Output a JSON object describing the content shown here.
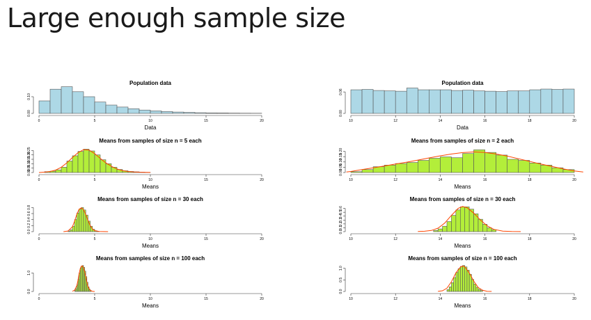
{
  "title": "Large enough sample size",
  "colors": {
    "population_fill": "#add8e6",
    "sample_fill": "#b3ee3a",
    "bar_stroke": "#555555",
    "density_line": "#ff4500",
    "axis": "#333333"
  },
  "chart_data": [
    {
      "type": "bar",
      "title": "Population data",
      "xlabel": "Data",
      "xlim": [
        0,
        20
      ],
      "ylim": [
        0,
        0.15
      ],
      "xticks": [
        "0",
        "5",
        "10",
        "15",
        "20"
      ],
      "yticks": [
        "0.00",
        "0.10"
      ],
      "bin_edges": [
        0,
        1,
        2,
        3,
        4,
        5,
        6,
        7,
        8,
        9,
        10,
        11,
        12,
        13,
        14,
        15,
        16,
        17,
        18,
        19,
        20
      ],
      "values": [
        0.075,
        0.145,
        0.16,
        0.13,
        0.1,
        0.068,
        0.05,
        0.038,
        0.028,
        0.02,
        0.015,
        0.011,
        0.008,
        0.006,
        0.004,
        0.003,
        0.0025,
        0.0018,
        0.0013,
        0.001
      ],
      "fill": "population",
      "density": null
    },
    {
      "type": "bar",
      "title": "Population data",
      "xlabel": "Data",
      "xlim": [
        10,
        20
      ],
      "ylim": [
        0,
        0.07
      ],
      "xticks": [
        "10",
        "12",
        "14",
        "16",
        "18",
        "20"
      ],
      "yticks": [
        "0.00",
        "0.06"
      ],
      "bin_edges": [
        10,
        10.5,
        11,
        11.5,
        12,
        12.5,
        13,
        13.5,
        14,
        14.5,
        15,
        15.5,
        16,
        16.5,
        17,
        17.5,
        18,
        18.5,
        19,
        19.5,
        20
      ],
      "values": [
        0.066,
        0.067,
        0.064,
        0.063,
        0.062,
        0.071,
        0.066,
        0.066,
        0.066,
        0.064,
        0.065,
        0.063,
        0.062,
        0.061,
        0.063,
        0.063,
        0.066,
        0.068,
        0.067,
        0.068
      ],
      "fill": "population",
      "density": null
    },
    {
      "type": "bar",
      "title": "Means from samples of size n = 5 each",
      "xlabel": "Means",
      "xlim": [
        0,
        20
      ],
      "ylim": [
        0,
        0.3
      ],
      "xticks": [
        "0",
        "5",
        "10",
        "15",
        "20"
      ],
      "yticks": [
        "0.00",
        "0.05",
        "0.10",
        "0.15",
        "0.20",
        "0.25"
      ],
      "bin_edges": [
        0,
        0.5,
        1,
        1.5,
        2,
        2.5,
        3,
        3.5,
        4,
        4.5,
        5,
        5.5,
        6,
        6.5,
        7,
        7.5,
        8,
        8.5,
        9,
        9.5,
        10
      ],
      "values": [
        0.0,
        0.01,
        0.015,
        0.03,
        0.06,
        0.13,
        0.19,
        0.24,
        0.265,
        0.245,
        0.2,
        0.145,
        0.1,
        0.06,
        0.035,
        0.02,
        0.012,
        0.008,
        0.004,
        0.002
      ],
      "fill": "sample",
      "density": {
        "x": [
          0,
          0.5,
          1,
          1.5,
          2,
          2.5,
          3,
          3.5,
          4,
          4.5,
          5,
          5.5,
          6,
          6.5,
          7,
          7.5,
          8,
          8.5,
          9,
          9.5,
          10
        ],
        "y": [
          0,
          0.005,
          0.012,
          0.028,
          0.06,
          0.11,
          0.17,
          0.225,
          0.26,
          0.255,
          0.215,
          0.16,
          0.11,
          0.07,
          0.04,
          0.022,
          0.012,
          0.007,
          0.004,
          0.002,
          0.001
        ]
      }
    },
    {
      "type": "bar",
      "title": "Means from samples of size n = 2 each",
      "xlabel": "Means",
      "xlim": [
        10,
        20
      ],
      "ylim": [
        0,
        0.25
      ],
      "xticks": [
        "10",
        "12",
        "14",
        "16",
        "18",
        "20"
      ],
      "yticks": [
        "0.00",
        "0.05",
        "0.10",
        "0.15",
        "0.20"
      ],
      "bin_edges": [
        10,
        10.5,
        11,
        11.5,
        12,
        12.5,
        13,
        13.5,
        14,
        14.5,
        15,
        15.5,
        16,
        16.5,
        17,
        17.5,
        18,
        18.5,
        19,
        19.5,
        20
      ],
      "values": [
        0.008,
        0.028,
        0.055,
        0.07,
        0.085,
        0.095,
        0.115,
        0.135,
        0.148,
        0.14,
        0.18,
        0.215,
        0.19,
        0.165,
        0.125,
        0.115,
        0.09,
        0.07,
        0.045,
        0.028
      ],
      "fill": "sample",
      "density": {
        "x": [
          9.8,
          10,
          10.5,
          11,
          11.5,
          12,
          12.5,
          13,
          13.5,
          14,
          14.5,
          15,
          15.5,
          16,
          16.5,
          17,
          17.5,
          18,
          18.5,
          19,
          19.5,
          20,
          20.4
        ],
        "y": [
          0.005,
          0.01,
          0.028,
          0.045,
          0.062,
          0.08,
          0.098,
          0.118,
          0.138,
          0.158,
          0.175,
          0.188,
          0.195,
          0.19,
          0.175,
          0.155,
          0.13,
          0.105,
          0.08,
          0.058,
          0.035,
          0.015,
          0.005
        ]
      }
    },
    {
      "type": "bar",
      "title": "Means from samples of size n = 30 each",
      "xlabel": "Means",
      "xlim": [
        0,
        20
      ],
      "ylim": [
        0,
        0.9
      ],
      "xticks": [
        "0",
        "5",
        "10",
        "15",
        "20"
      ],
      "yticks": [
        "0.0",
        "0.2",
        "0.4",
        "0.6",
        "0.8"
      ],
      "bin_edges": [
        2.6,
        2.8,
        3.0,
        3.2,
        3.4,
        3.6,
        3.8,
        4.0,
        4.2,
        4.4,
        4.6,
        4.8,
        5.0,
        5.2,
        5.4
      ],
      "values": [
        0.02,
        0.06,
        0.18,
        0.4,
        0.62,
        0.75,
        0.8,
        0.72,
        0.55,
        0.35,
        0.18,
        0.08,
        0.03,
        0.01
      ],
      "fill": "sample",
      "density": {
        "x": [
          2.2,
          2.6,
          3.0,
          3.2,
          3.4,
          3.6,
          3.8,
          4.0,
          4.2,
          4.4,
          4.6,
          4.8,
          5.0,
          5.4,
          5.8,
          6.2
        ],
        "y": [
          0,
          0.02,
          0.16,
          0.35,
          0.58,
          0.74,
          0.79,
          0.73,
          0.57,
          0.37,
          0.2,
          0.09,
          0.035,
          0.008,
          0.002,
          0
        ]
      }
    },
    {
      "type": "bar",
      "title": "Means from samples of size n = 30 each",
      "xlabel": "Means",
      "xlim": [
        10,
        20
      ],
      "ylim": [
        0,
        0.7
      ],
      "xticks": [
        "10",
        "12",
        "14",
        "16",
        "18",
        "20"
      ],
      "yticks": [
        "0.0",
        "0.1",
        "0.2",
        "0.3",
        "0.4",
        "0.5",
        "0.6"
      ],
      "bin_edges": [
        13.7,
        13.9,
        14.1,
        14.3,
        14.5,
        14.7,
        14.9,
        15.1,
        15.3,
        15.5,
        15.7,
        15.9,
        16.1,
        16.3,
        16.5
      ],
      "values": [
        0.03,
        0.07,
        0.14,
        0.26,
        0.42,
        0.56,
        0.64,
        0.64,
        0.58,
        0.46,
        0.32,
        0.19,
        0.1,
        0.05
      ],
      "fill": "sample",
      "density": {
        "x": [
          13.0,
          13.3,
          13.6,
          13.9,
          14.2,
          14.5,
          14.8,
          15.0,
          15.2,
          15.5,
          15.8,
          16.1,
          16.4,
          16.8,
          17.2,
          17.6
        ],
        "y": [
          0.003,
          0.01,
          0.03,
          0.09,
          0.22,
          0.42,
          0.6,
          0.65,
          0.62,
          0.48,
          0.3,
          0.15,
          0.06,
          0.015,
          0.004,
          0.001
        ]
      }
    },
    {
      "type": "bar",
      "title": "Means from samples of size n = 100 each",
      "xlabel": "Means",
      "xlim": [
        0,
        20
      ],
      "ylim": [
        0,
        1.5
      ],
      "xticks": [
        "0",
        "5",
        "10",
        "15",
        "20"
      ],
      "yticks": [
        "0.0",
        "1.0"
      ],
      "bin_edges": [
        3.2,
        3.3,
        3.4,
        3.5,
        3.6,
        3.7,
        3.8,
        3.9,
        4.0,
        4.1,
        4.2,
        4.3,
        4.4,
        4.5,
        4.6,
        4.7
      ],
      "values": [
        0.05,
        0.15,
        0.35,
        0.65,
        1.0,
        1.25,
        1.38,
        1.4,
        1.3,
        1.1,
        0.8,
        0.5,
        0.25,
        0.12,
        0.05
      ],
      "fill": "sample",
      "density": {
        "x": [
          3.0,
          3.2,
          3.4,
          3.5,
          3.6,
          3.7,
          3.8,
          3.9,
          4.0,
          4.1,
          4.2,
          4.3,
          4.4,
          4.6,
          4.8,
          5.0
        ],
        "y": [
          0.01,
          0.07,
          0.32,
          0.6,
          0.95,
          1.22,
          1.36,
          1.38,
          1.28,
          1.08,
          0.8,
          0.5,
          0.26,
          0.06,
          0.01,
          0
        ]
      }
    },
    {
      "type": "bar",
      "title": "Means from samples of size n = 100 each",
      "xlabel": "Means",
      "xlim": [
        10,
        20
      ],
      "ylim": [
        0,
        1.2
      ],
      "xticks": [
        "10",
        "12",
        "14",
        "16",
        "18",
        "20"
      ],
      "yticks": [
        "0.0",
        "0.5",
        "1.0"
      ],
      "bin_edges": [
        14.3,
        14.4,
        14.5,
        14.6,
        14.7,
        14.8,
        14.9,
        15.0,
        15.1,
        15.2,
        15.3,
        15.4,
        15.5,
        15.6,
        15.7,
        15.8,
        15.9
      ],
      "values": [
        0.08,
        0.2,
        0.38,
        0.6,
        0.82,
        0.98,
        1.08,
        1.12,
        1.06,
        0.92,
        0.74,
        0.52,
        0.32,
        0.18,
        0.09,
        0.04
      ],
      "fill": "sample",
      "density": {
        "x": [
          13.9,
          14.1,
          14.3,
          14.5,
          14.7,
          14.9,
          15.0,
          15.1,
          15.3,
          15.5,
          15.7,
          15.9,
          16.1,
          16.3
        ],
        "y": [
          0.005,
          0.03,
          0.14,
          0.42,
          0.8,
          1.05,
          1.1,
          1.06,
          0.8,
          0.45,
          0.17,
          0.05,
          0.01,
          0.002
        ]
      }
    }
  ]
}
